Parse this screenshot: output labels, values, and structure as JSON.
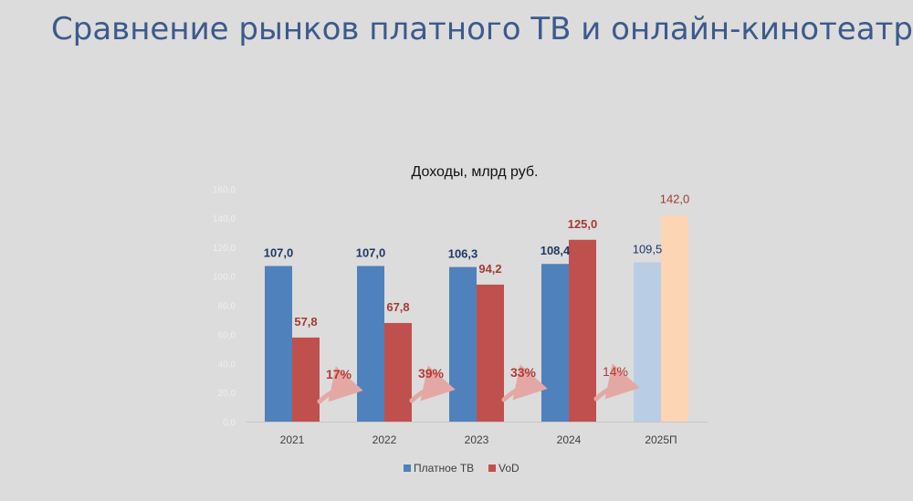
{
  "slide": {
    "title": "Сравнение рынков платного ТВ и онлайн-кинотеатров"
  },
  "chart_data": {
    "type": "bar",
    "title": "Доходы, млрд руб.",
    "categories": [
      "2021",
      "2022",
      "2023",
      "2024",
      "2025П"
    ],
    "series": [
      {
        "name": "Платное ТВ",
        "values": [
          107.0,
          107.0,
          106.3,
          108.4,
          109.5
        ],
        "labels": [
          "107,0",
          "107,0",
          "106,3",
          "108,4",
          "109,5"
        ],
        "color": "#4f81bd",
        "forecast_color": "#b9cde5",
        "label_color": "#1f3864"
      },
      {
        "name": "VoD",
        "values": [
          57.8,
          67.8,
          94.2,
          125.0,
          142.0
        ],
        "labels": [
          "57,8",
          "67,8",
          "94,2",
          "125,0",
          "142,0"
        ],
        "color": "#c0504d",
        "forecast_color": "#fcd5b5",
        "label_color": "#a33a36"
      }
    ],
    "growth": [
      "17%",
      "39%",
      "33%",
      "14%"
    ],
    "forecast_index": 4,
    "ylim": [
      0,
      160
    ],
    "yticks": [
      "0,0",
      "20,0",
      "40,0",
      "60,0",
      "80,0",
      "100,0",
      "120,0",
      "140,0",
      "160,0"
    ],
    "legend_position": "bottom",
    "grid": false
  }
}
